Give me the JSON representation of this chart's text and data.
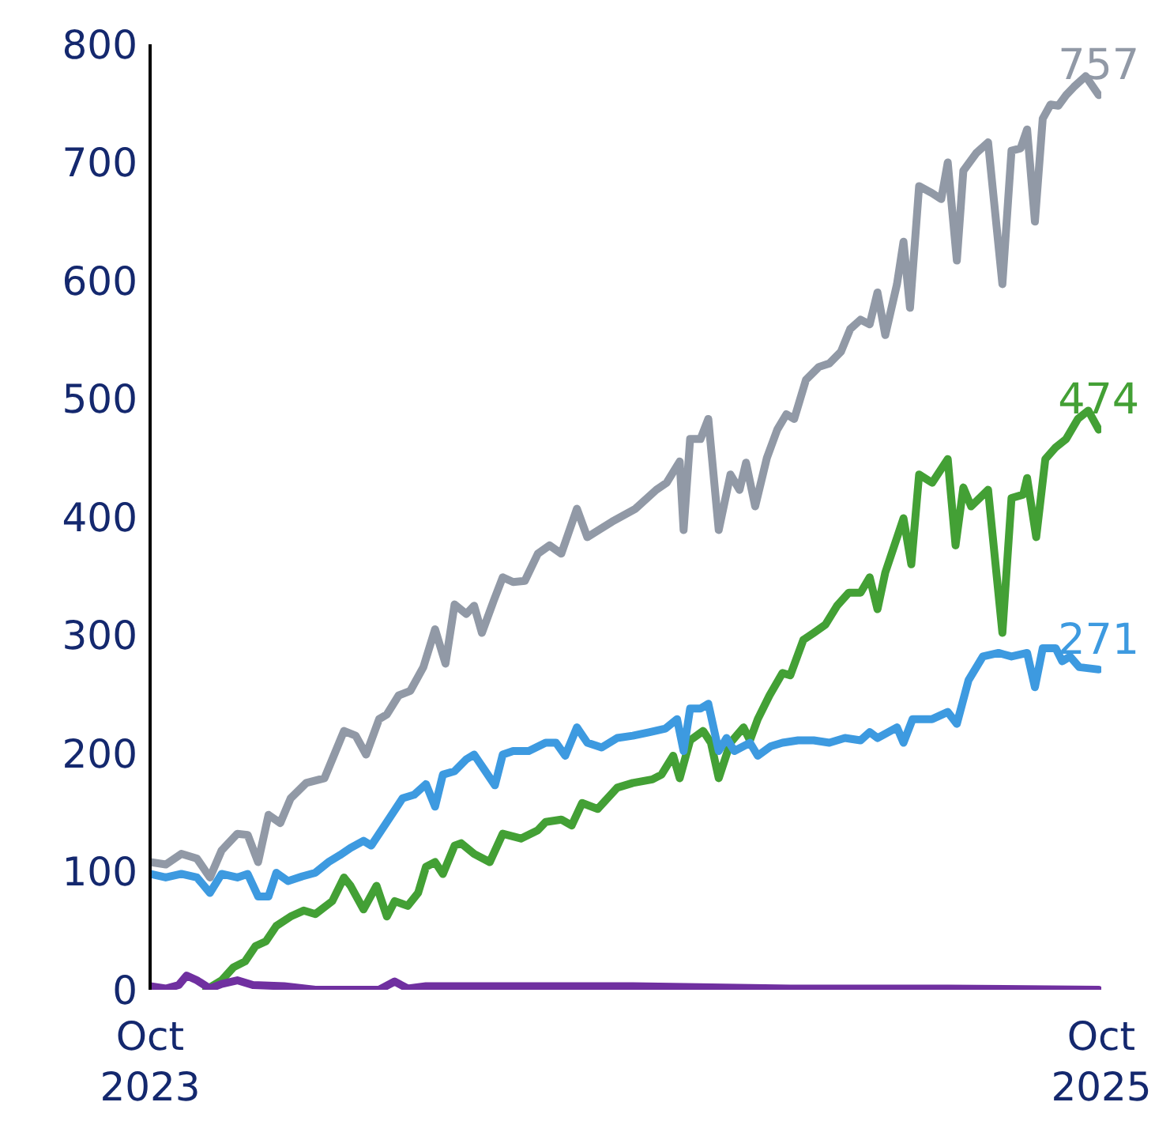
{
  "chart_data": {
    "type": "line",
    "xlim": [
      "2023-10-01",
      "2025-10-01"
    ],
    "xticks": [
      {
        "value": "2023-10-01",
        "label": "Oct 2023"
      },
      {
        "value": "2025-10-01",
        "label": "Oct 2025"
      }
    ],
    "ylim": [
      0,
      800
    ],
    "yticks": [
      0,
      100,
      200,
      300,
      400,
      500,
      600,
      700,
      800
    ],
    "grid": false,
    "legend": false,
    "marker": "none",
    "line_style": "solid",
    "series": [
      {
        "color": "#9199a6",
        "x": [
          "2023-10-01",
          "2023-10-13",
          "2023-10-25",
          "2023-11-06",
          "2023-11-16",
          "2023-11-25",
          "2023-12-07",
          "2023-12-15",
          "2023-12-23",
          "2023-12-31",
          "2024-01-09",
          "2024-01-17",
          "2024-01-29",
          "2024-02-12",
          "2024-02-18",
          "2024-02-27",
          "2024-03-07",
          "2024-03-15",
          "2024-03-25",
          "2024-03-31",
          "2024-04-09",
          "2024-04-18",
          "2024-04-28",
          "2024-05-07",
          "2024-05-15",
          "2024-05-22",
          "2024-05-31",
          "2024-06-06",
          "2024-06-12",
          "2024-06-21",
          "2024-06-28",
          "2024-07-06",
          "2024-07-15",
          "2024-07-25",
          "2024-08-03",
          "2024-08-12",
          "2024-08-24",
          "2024-09-01",
          "2024-09-20",
          "2024-10-08",
          "2024-10-24",
          "2024-11-01",
          "2024-11-11",
          "2024-11-14",
          "2024-11-19",
          "2024-11-27",
          "2024-12-03",
          "2024-12-11",
          "2024-12-20",
          "2024-12-27",
          "2025-01-01",
          "2025-01-08",
          "2025-01-17",
          "2025-01-25",
          "2025-02-01",
          "2025-02-07",
          "2025-02-16",
          "2025-02-26",
          "2025-03-06",
          "2025-03-15",
          "2025-03-22",
          "2025-03-30",
          "2025-04-06",
          "2025-04-12",
          "2025-04-18",
          "2025-04-27",
          "2025-05-02",
          "2025-05-07",
          "2025-05-14",
          "2025-05-24",
          "2025-05-31",
          "2025-06-05",
          "2025-06-12",
          "2025-06-17",
          "2025-06-27",
          "2025-07-06",
          "2025-07-17",
          "2025-07-24",
          "2025-07-31",
          "2025-08-05",
          "2025-08-11",
          "2025-08-17",
          "2025-08-23",
          "2025-08-29",
          "2025-09-04",
          "2025-09-10",
          "2025-09-19",
          "2025-09-29"
        ],
        "values": [
          108,
          106,
          115,
          111,
          95,
          118,
          132,
          131,
          108,
          148,
          141,
          162,
          175,
          179,
          195,
          219,
          215,
          199,
          229,
          233,
          249,
          253,
          273,
          305,
          276,
          326,
          318,
          325,
          302,
          329,
          349,
          345,
          346,
          369,
          376,
          369,
          407,
          383,
          396,
          407,
          423,
          429,
          447,
          389,
          466,
          466,
          483,
          389,
          436,
          423,
          446,
          409,
          450,
          474,
          487,
          483,
          516,
          527,
          530,
          540,
          559,
          567,
          563,
          590,
          554,
          597,
          633,
          577,
          680,
          674,
          669,
          700,
          617,
          693,
          708,
          717,
          597,
          710,
          712,
          728,
          650,
          737,
          749,
          748,
          757,
          764,
          773,
          757
        ]
      },
      {
        "color": "#43a035",
        "x": [
          "2023-11-13",
          "2023-11-25",
          "2023-12-04",
          "2023-12-13",
          "2023-12-21",
          "2023-12-29",
          "2024-01-06",
          "2024-01-17",
          "2024-01-27",
          "2024-02-05",
          "2024-02-18",
          "2024-02-27",
          "2024-03-03",
          "2024-03-13",
          "2024-03-23",
          "2024-03-31",
          "2024-04-06",
          "2024-04-16",
          "2024-04-24",
          "2024-04-30",
          "2024-05-07",
          "2024-05-13",
          "2024-05-22",
          "2024-05-27",
          "2024-06-06",
          "2024-06-18",
          "2024-06-28",
          "2024-07-12",
          "2024-07-25",
          "2024-07-31",
          "2024-08-12",
          "2024-08-20",
          "2024-08-28",
          "2024-09-09",
          "2024-09-24",
          "2024-10-06",
          "2024-10-21",
          "2024-10-28",
          "2024-11-06",
          "2024-11-11",
          "2024-11-19",
          "2024-11-29",
          "2024-12-05",
          "2024-12-11",
          "2024-12-20",
          "2024-12-30",
          "2025-01-04",
          "2025-01-10",
          "2025-01-19",
          "2025-01-29",
          "2025-02-04",
          "2025-02-14",
          "2025-02-22",
          "2025-03-03",
          "2025-03-12",
          "2025-03-21",
          "2025-03-30",
          "2025-04-06",
          "2025-04-12",
          "2025-04-18",
          "2025-05-02",
          "2025-05-08",
          "2025-05-14",
          "2025-05-24",
          "2025-06-05",
          "2025-06-11",
          "2025-06-17",
          "2025-06-23",
          "2025-07-06",
          "2025-07-17",
          "2025-07-24",
          "2025-08-02",
          "2025-08-05",
          "2025-08-12",
          "2025-08-19",
          "2025-08-27",
          "2025-09-04",
          "2025-09-13",
          "2025-09-21",
          "2025-09-29"
        ],
        "values": [
          0,
          8,
          19,
          24,
          37,
          41,
          54,
          62,
          67,
          64,
          75,
          95,
          88,
          68,
          88,
          62,
          75,
          71,
          82,
          104,
          108,
          98,
          122,
          124,
          115,
          108,
          132,
          128,
          135,
          142,
          144,
          139,
          158,
          153,
          171,
          175,
          178,
          182,
          198,
          179,
          211,
          219,
          209,
          179,
          209,
          222,
          211,
          229,
          249,
          268,
          266,
          296,
          302,
          309,
          325,
          336,
          336,
          349,
          322,
          353,
          399,
          360,
          436,
          429,
          449,
          376,
          425,
          409,
          423,
          302,
          416,
          419,
          433,
          383,
          449,
          459,
          466,
          483,
          490,
          474
        ]
      },
      {
        "color": "#3d9ae0",
        "x": [
          "2023-10-01",
          "2023-10-13",
          "2023-10-25",
          "2023-11-06",
          "2023-11-16",
          "2023-11-25",
          "2023-12-07",
          "2023-12-15",
          "2023-12-23",
          "2023-12-31",
          "2024-01-06",
          "2024-01-15",
          "2024-01-26",
          "2024-02-05",
          "2024-02-15",
          "2024-02-24",
          "2024-03-03",
          "2024-03-13",
          "2024-03-19",
          "2024-03-31",
          "2024-04-12",
          "2024-04-21",
          "2024-04-30",
          "2024-05-07",
          "2024-05-13",
          "2024-05-22",
          "2024-05-31",
          "2024-06-06",
          "2024-06-14",
          "2024-06-22",
          "2024-06-28",
          "2024-07-06",
          "2024-07-18",
          "2024-07-31",
          "2024-08-08",
          "2024-08-15",
          "2024-08-24",
          "2024-09-01",
          "2024-09-12",
          "2024-09-24",
          "2024-10-06",
          "2024-10-19",
          "2024-10-31",
          "2024-11-09",
          "2024-11-14",
          "2024-11-19",
          "2024-11-27",
          "2024-12-03",
          "2024-12-11",
          "2024-12-17",
          "2024-12-23",
          "2025-01-04",
          "2025-01-10",
          "2025-01-20",
          "2025-01-29",
          "2025-02-10",
          "2025-02-22",
          "2025-03-06",
          "2025-03-18",
          "2025-03-30",
          "2025-04-06",
          "2025-04-12",
          "2025-04-27",
          "2025-05-02",
          "2025-05-09",
          "2025-05-24",
          "2025-06-05",
          "2025-06-12",
          "2025-06-21",
          "2025-07-02",
          "2025-07-14",
          "2025-07-24",
          "2025-08-05",
          "2025-08-11",
          "2025-08-17",
          "2025-08-27",
          "2025-09-01",
          "2025-09-07",
          "2025-09-14",
          "2025-09-29"
        ],
        "values": [
          98,
          95,
          98,
          95,
          82,
          98,
          95,
          98,
          79,
          79,
          99,
          92,
          96,
          99,
          108,
          114,
          120,
          126,
          122,
          142,
          162,
          165,
          174,
          155,
          182,
          185,
          195,
          199,
          186,
          173,
          199,
          202,
          202,
          209,
          209,
          198,
          222,
          209,
          205,
          213,
          215,
          218,
          221,
          229,
          202,
          238,
          238,
          242,
          202,
          213,
          202,
          209,
          198,
          206,
          209,
          211,
          211,
          209,
          213,
          211,
          218,
          213,
          222,
          209,
          229,
          229,
          235,
          225,
          262,
          282,
          285,
          282,
          285,
          256,
          289,
          289,
          278,
          282,
          273,
          271
        ]
      },
      {
        "color": "#7030a0",
        "x": [
          "2023-10-01",
          "2023-10-13",
          "2023-10-23",
          "2023-10-29",
          "2023-11-06",
          "2023-11-16",
          "2023-11-25",
          "2023-12-07",
          "2023-12-19",
          "2024-01-12",
          "2024-02-05",
          "2024-03-25",
          "2024-04-06",
          "2024-04-16",
          "2024-04-30",
          "2024-10-06",
          "2025-02-04",
          "2025-06-05",
          "2025-09-29"
        ],
        "values": [
          3,
          1,
          4,
          12,
          8,
          1,
          5,
          8,
          4,
          3,
          0,
          0,
          7,
          1,
          3,
          3,
          1,
          1,
          0
        ]
      }
    ],
    "annotations": [
      {
        "text": "757",
        "x": "2025-09-29",
        "y": 757
      },
      {
        "text": "474",
        "x": "2025-09-29",
        "y": 474
      },
      {
        "text": "271",
        "x": "2025-09-29",
        "y": 271
      }
    ]
  }
}
